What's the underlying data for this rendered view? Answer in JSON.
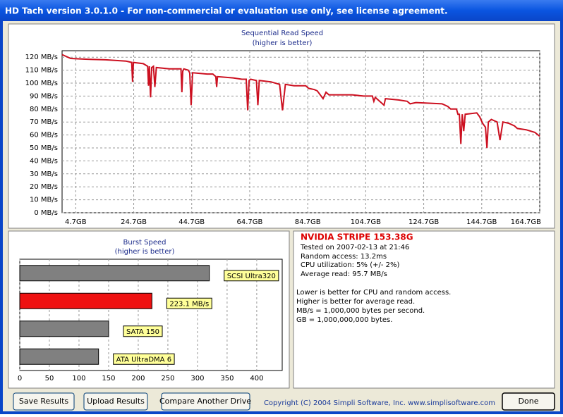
{
  "window": {
    "title": "HD Tach version 3.0.1.0  - For non-commercial or evaluation use only, see license agreement."
  },
  "chart_data": [
    {
      "type": "line",
      "title": "Sequential Read Speed",
      "subtitle": "(higher is better)",
      "color": "#cc1020",
      "grid": true,
      "x": [
        0,
        1,
        3,
        8,
        15,
        22,
        24,
        24.3,
        24.6,
        28,
        29.5,
        29.8,
        30.1,
        30.5,
        30.9,
        31.5,
        32,
        32.5,
        37,
        41,
        41.3,
        41.6,
        42,
        43.5,
        44,
        44.5,
        45,
        50,
        52,
        52.5,
        53,
        53.3,
        53.6,
        59,
        62,
        63.5,
        64,
        64.5,
        65,
        67,
        67.5,
        68,
        72,
        75,
        76,
        77,
        80,
        84,
        85,
        87,
        88,
        90,
        91,
        92,
        100,
        104,
        107,
        107.5,
        108,
        110,
        111,
        111.5,
        116,
        119,
        120,
        122,
        131,
        133,
        134,
        136,
        136.5,
        137,
        137.5,
        138,
        138.5,
        139,
        143,
        144,
        145,
        146,
        146.5,
        147,
        148,
        150,
        151,
        152,
        154,
        156,
        157,
        160,
        163,
        164.7
      ],
      "values": [
        122,
        121,
        119,
        118.5,
        118,
        117,
        116,
        101,
        116,
        115,
        113,
        98,
        113,
        89,
        112,
        113,
        97,
        112,
        111,
        111,
        93,
        109,
        111,
        110,
        108,
        83,
        108,
        107,
        107,
        106,
        105,
        97,
        105,
        104,
        103,
        103,
        79,
        102,
        103,
        102,
        83,
        102,
        101,
        99,
        79,
        99,
        98,
        98,
        96,
        95,
        94,
        88,
        93,
        91,
        91,
        90,
        90,
        86,
        89,
        85,
        83,
        88,
        87,
        86,
        84,
        85,
        84,
        82,
        80,
        80,
        76,
        76,
        53,
        76,
        63,
        76,
        77,
        74,
        69,
        66,
        50,
        70,
        72,
        70,
        56,
        70,
        69,
        67,
        65,
        64,
        62,
        59
      ],
      "xlim": [
        0,
        164.7
      ],
      "xticks": [
        {
          "value": 4.7,
          "label": "4.7GB"
        },
        {
          "value": 24.7,
          "label": "24.7GB"
        },
        {
          "value": 44.7,
          "label": "44.7GB"
        },
        {
          "value": 64.7,
          "label": "64.7GB"
        },
        {
          "value": 84.7,
          "label": "84.7GB"
        },
        {
          "value": 104.7,
          "label": "104.7GB"
        },
        {
          "value": 124.7,
          "label": "124.7GB"
        },
        {
          "value": 144.7,
          "label": "144.7GB"
        },
        {
          "value": 164.7,
          "label": "164.7GB"
        }
      ],
      "ylim": [
        0,
        125
      ],
      "yticks": [
        {
          "value": 0,
          "label": "0 MB/s"
        },
        {
          "value": 10,
          "label": "10 MB/s"
        },
        {
          "value": 20,
          "label": "20 MB/s"
        },
        {
          "value": 30,
          "label": "30 MB/s"
        },
        {
          "value": 40,
          "label": "40 MB/s"
        },
        {
          "value": 50,
          "label": "50 MB/s"
        },
        {
          "value": 60,
          "label": "60 MB/s"
        },
        {
          "value": 70,
          "label": "70 MB/s"
        },
        {
          "value": 80,
          "label": "80 MB/s"
        },
        {
          "value": 90,
          "label": "90 MB/s"
        },
        {
          "value": 100,
          "label": "100 MB/s"
        },
        {
          "value": 110,
          "label": "110 MB/s"
        },
        {
          "value": 120,
          "label": "120 MB/s"
        }
      ]
    },
    {
      "type": "hbar",
      "title": "Burst Speed",
      "subtitle": "(higher is better)",
      "grid": true,
      "categories": [
        "SCSI Ultra320",
        "223.1 MB/s",
        "SATA 150",
        "ATA UltraDMA 6"
      ],
      "values": [
        320,
        223.1,
        150,
        133
      ],
      "colors": [
        "#808080",
        "#ee1111",
        "#808080",
        "#808080"
      ],
      "xlim": [
        0,
        443
      ],
      "xticks": [
        0,
        50,
        100,
        150,
        200,
        250,
        300,
        350,
        400
      ]
    }
  ],
  "info": {
    "name": "NVIDIA STRIPE 153.38G",
    "details": [
      "Tested on 2007-02-13 at 21:46",
      "Random access: 13.2ms",
      "CPU utilization: 5% (+/- 2%)",
      "Average read: 95.7 MB/s"
    ],
    "notes": [
      "Lower is better for CPU and random access.",
      "Higher is better for average read.",
      "MB/s = 1,000,000 bytes per second.",
      "GB = 1,000,000,000 bytes."
    ]
  },
  "buttons": [
    "Save Results",
    "Upload Results",
    "Compare Another Drive",
    "Done"
  ],
  "copyright": "Copyright (C) 2004 Simpli Software, Inc. www.simplisoftware.com"
}
